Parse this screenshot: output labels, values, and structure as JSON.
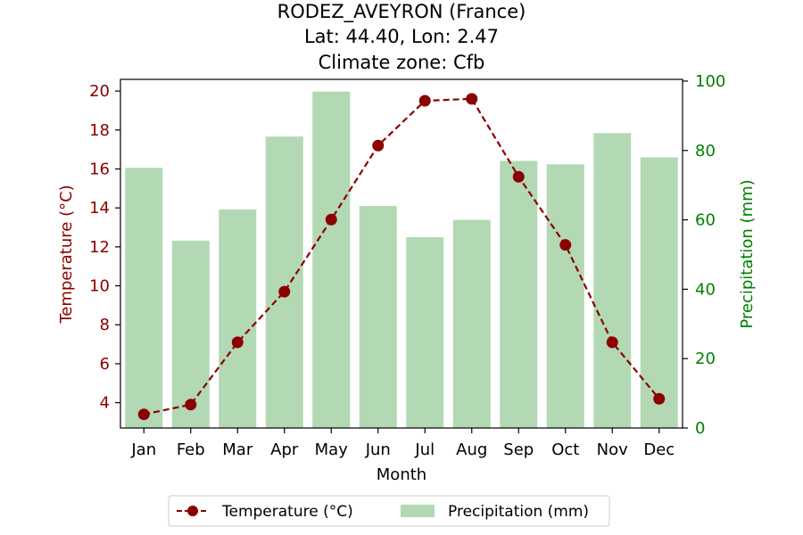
{
  "chart_data": {
    "type": "bar+line",
    "title_lines": [
      "RODEZ_AVEYRON (France)",
      "Lat: 44.40, Lon: 2.47",
      "Climate zone: Cfb"
    ],
    "xlabel": "Month",
    "categories": [
      "Jan",
      "Feb",
      "Mar",
      "Apr",
      "May",
      "Jun",
      "Jul",
      "Aug",
      "Sep",
      "Oct",
      "Nov",
      "Dec"
    ],
    "left_axis": {
      "label": "Temperature (°C)",
      "ticks": [
        "4",
        "6",
        "8",
        "10",
        "12",
        "14",
        "16",
        "18",
        "20"
      ],
      "ylim": [
        2.7,
        20.6
      ]
    },
    "right_axis": {
      "label": "Precipitation (mm)",
      "ticks": [
        "0",
        "20",
        "40",
        "60",
        "80",
        "100"
      ],
      "ylim": [
        0,
        100.5
      ]
    },
    "series": [
      {
        "name": "Temperature (°C)",
        "kind": "line",
        "axis": "left",
        "color": "#8b0000",
        "values": [
          3.4,
          3.9,
          7.1,
          9.7,
          13.4,
          17.2,
          19.5,
          19.6,
          15.6,
          12.1,
          7.1,
          4.2
        ]
      },
      {
        "name": "Precipitation (mm)",
        "kind": "bar",
        "axis": "right",
        "color": "#b2d9b4",
        "values": [
          75,
          54,
          63,
          84,
          97,
          64,
          55,
          60,
          77,
          76,
          85,
          78
        ]
      }
    ],
    "legend": {
      "placement": "bottom-center"
    },
    "grid": false
  }
}
